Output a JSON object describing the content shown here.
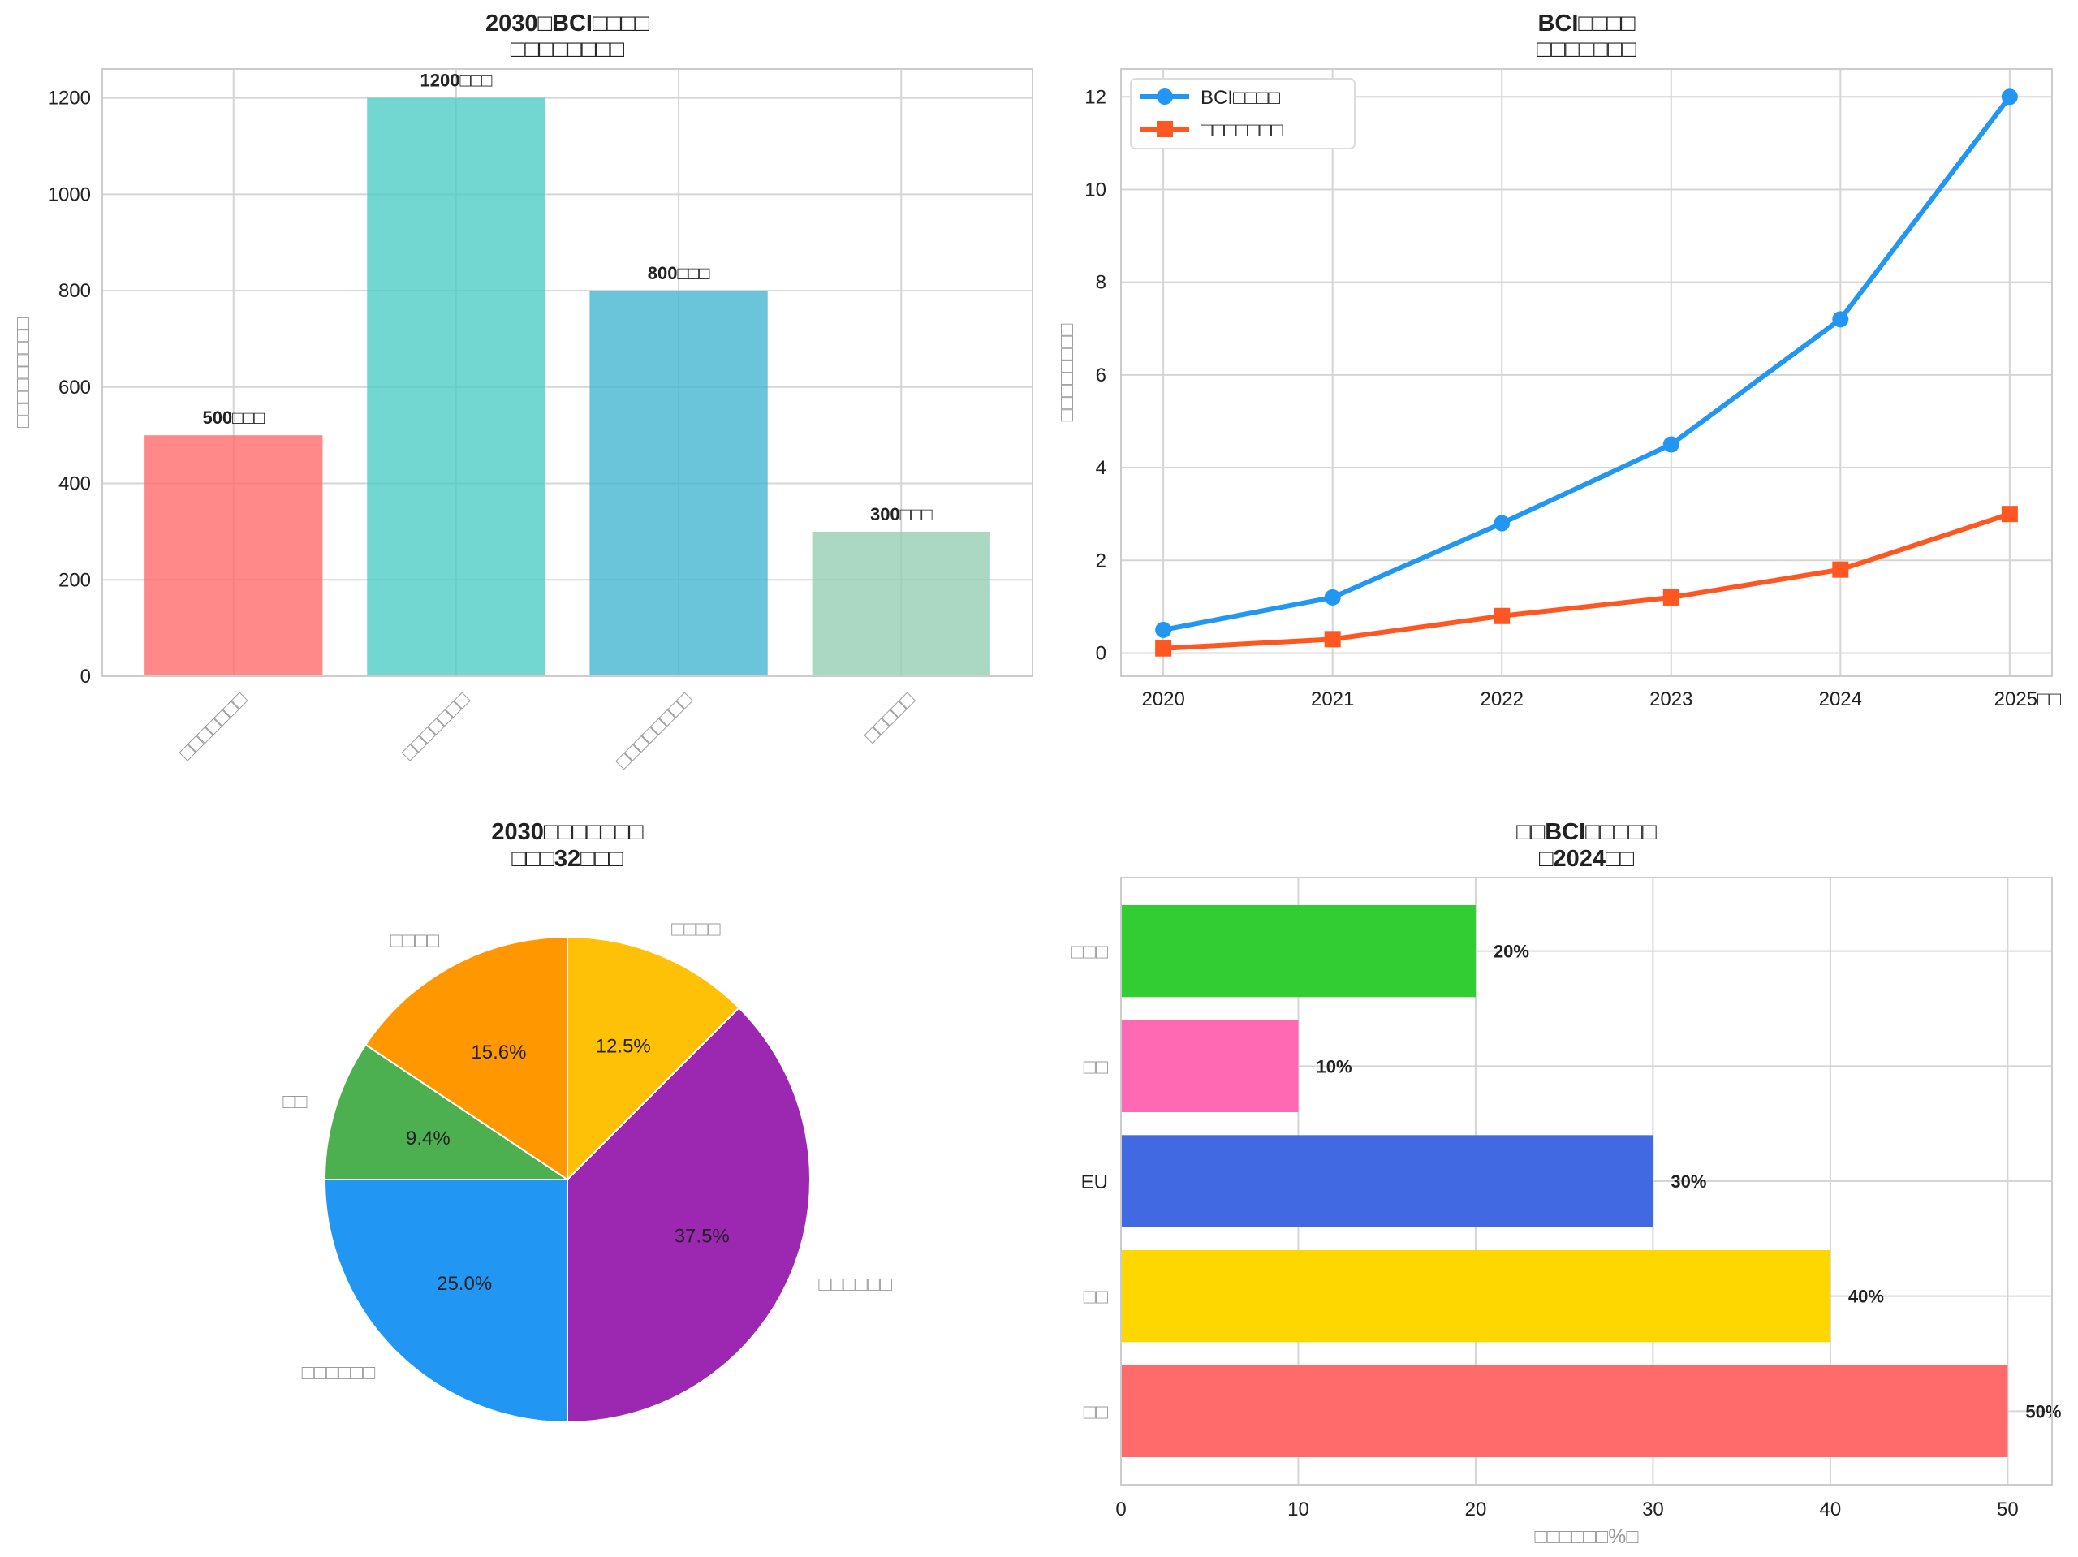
{
  "chart_data": [
    {
      "type": "bar",
      "title": [
        "2030□BCI□□□□",
        "□□□□□□□□"
      ],
      "categories": [
        "□□□□□□□",
        "□□□□□□□",
        "□□□□□□□□",
        "□□□□□"
      ],
      "values": [
        500,
        1200,
        800,
        300
      ],
      "value_labels": [
        "500□□□",
        "1200□□□",
        "800□□□",
        "300□□□"
      ],
      "colors": [
        "#FF6B6B",
        "#4ECDC4",
        "#45B7D1",
        "#96CEB4"
      ],
      "ylabel": "□□□□□□□□□",
      "ylim": [
        0,
        1260
      ],
      "yticks": [
        0,
        200,
        400,
        600,
        800,
        1000,
        1200
      ],
      "grid": true
    },
    {
      "type": "line",
      "title": [
        "BCI□□□□",
        "□□□□□□□"
      ],
      "x": [
        2020,
        2021,
        2022,
        2023,
        2024,
        2025
      ],
      "xtick_labels": [
        "2020",
        "2021",
        "2022",
        "2023",
        "2024",
        "2025□□"
      ],
      "series": [
        {
          "name": "BCI□□□□",
          "values": [
            0.5,
            1.2,
            2.8,
            4.5,
            7.2,
            12.0
          ],
          "color": "#2196F3",
          "marker": "circle"
        },
        {
          "name": "□□□□□□□",
          "values": [
            0.1,
            0.3,
            0.8,
            1.2,
            1.8,
            3.0
          ],
          "color": "#FF5722",
          "marker": "square"
        }
      ],
      "ylabel": "□□□□□□□□",
      "ylim": [
        -0.5,
        12.6
      ],
      "xlim": [
        2019.75,
        2025.25
      ],
      "yticks": [
        0,
        2,
        4,
        6,
        8,
        10,
        12
      ],
      "legend": "top-left",
      "grid": true
    },
    {
      "type": "pie",
      "title": [
        "2030□□□□□□□",
        "□□□32□□□"
      ],
      "slices": [
        {
          "label": "□□□□",
          "value": 4,
          "pct": "12.5%",
          "color": "#FFC107"
        },
        {
          "label": "□□□□□□",
          "value": 12,
          "pct": "37.5%",
          "color": "#9C27B0"
        },
        {
          "label": "□□□□□□",
          "value": 8,
          "pct": "25.0%",
          "color": "#2196F3"
        },
        {
          "label": "□□",
          "value": 3,
          "pct": "9.4%",
          "color": "#4CAF50"
        },
        {
          "label": "□□□□",
          "value": 5,
          "pct": "15.6%",
          "color": "#FF9800"
        }
      ]
    },
    {
      "type": "bar",
      "orientation": "horizontal",
      "title": [
        "□□BCI□□□□□",
        "□2024□□"
      ],
      "categories": [
        "□□",
        "□□",
        "EU",
        "□□",
        "□□□"
      ],
      "values": [
        50,
        40,
        30,
        10,
        20
      ],
      "value_labels": [
        "50%",
        "40%",
        "30%",
        "10%",
        "20%"
      ],
      "colors": [
        "#FF6B6B",
        "#FFD700",
        "#4169E1",
        "#FF69B4",
        "#32CD32"
      ],
      "xlabel": "□□□□□□%□",
      "xlim": [
        0,
        52.5
      ],
      "xticks": [
        0,
        10,
        20,
        30,
        40,
        50
      ],
      "grid": true
    }
  ]
}
